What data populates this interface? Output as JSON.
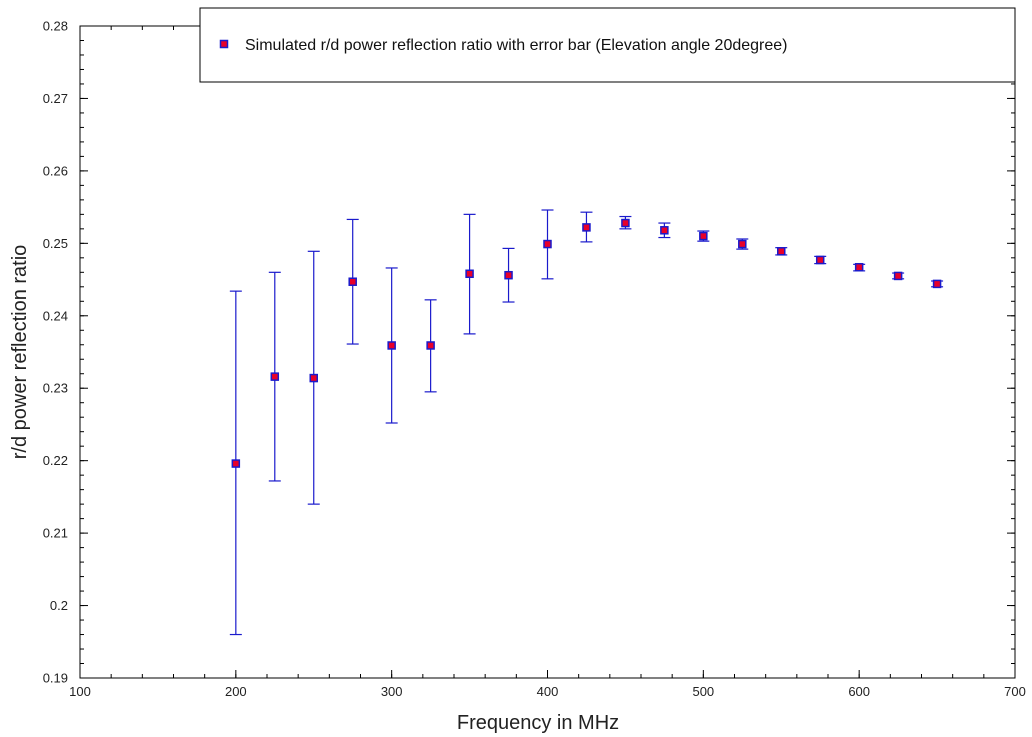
{
  "chart_data": {
    "type": "scatter",
    "xlabel": "Frequency in MHz",
    "ylabel": "r/d power reflection ratio",
    "xlim": [
      100,
      700
    ],
    "ylim": [
      0.19,
      0.28
    ],
    "x_ticks": [
      "100",
      "200",
      "300",
      "400",
      "500",
      "600",
      "700"
    ],
    "y_ticks": [
      "0.19",
      "0.2",
      "0.21",
      "0.22",
      "0.23",
      "0.24",
      "0.25",
      "0.26",
      "0.27",
      "0.28"
    ],
    "grid": false,
    "legend_position": "top-right",
    "series": [
      {
        "name": "Simulated r/d power reflection ratio with error bar (Elevation angle 20degree)",
        "marker_fill": "#e8002a",
        "marker_edge": "#1a1acc",
        "errorbar_color": "#1a1acc",
        "points": [
          {
            "x": 200,
            "y": 0.2196,
            "y_low": 0.196,
            "y_high": 0.2434
          },
          {
            "x": 225,
            "y": 0.2316,
            "y_low": 0.2172,
            "y_high": 0.246
          },
          {
            "x": 250,
            "y": 0.2314,
            "y_low": 0.214,
            "y_high": 0.2489
          },
          {
            "x": 275,
            "y": 0.2447,
            "y_low": 0.2361,
            "y_high": 0.2533
          },
          {
            "x": 300,
            "y": 0.2359,
            "y_low": 0.2252,
            "y_high": 0.2466
          },
          {
            "x": 325,
            "y": 0.2359,
            "y_low": 0.2295,
            "y_high": 0.2422
          },
          {
            "x": 350,
            "y": 0.2458,
            "y_low": 0.2375,
            "y_high": 0.254
          },
          {
            "x": 375,
            "y": 0.2456,
            "y_low": 0.2419,
            "y_high": 0.2493
          },
          {
            "x": 400,
            "y": 0.2499,
            "y_low": 0.2451,
            "y_high": 0.2546
          },
          {
            "x": 425,
            "y": 0.2522,
            "y_low": 0.2502,
            "y_high": 0.2543
          },
          {
            "x": 450,
            "y": 0.2528,
            "y_low": 0.252,
            "y_high": 0.2537
          },
          {
            "x": 475,
            "y": 0.2518,
            "y_low": 0.2508,
            "y_high": 0.2528
          },
          {
            "x": 500,
            "y": 0.251,
            "y_low": 0.2503,
            "y_high": 0.2517
          },
          {
            "x": 525,
            "y": 0.2499,
            "y_low": 0.2492,
            "y_high": 0.2506
          },
          {
            "x": 550,
            "y": 0.2489,
            "y_low": 0.2484,
            "y_high": 0.2494
          },
          {
            "x": 575,
            "y": 0.2477,
            "y_low": 0.2472,
            "y_high": 0.2482
          },
          {
            "x": 600,
            "y": 0.2467,
            "y_low": 0.2462,
            "y_high": 0.2471
          },
          {
            "x": 625,
            "y": 0.2455,
            "y_low": 0.2451,
            "y_high": 0.2459
          },
          {
            "x": 650,
            "y": 0.2444,
            "y_low": 0.244,
            "y_high": 0.2448
          }
        ]
      }
    ]
  }
}
